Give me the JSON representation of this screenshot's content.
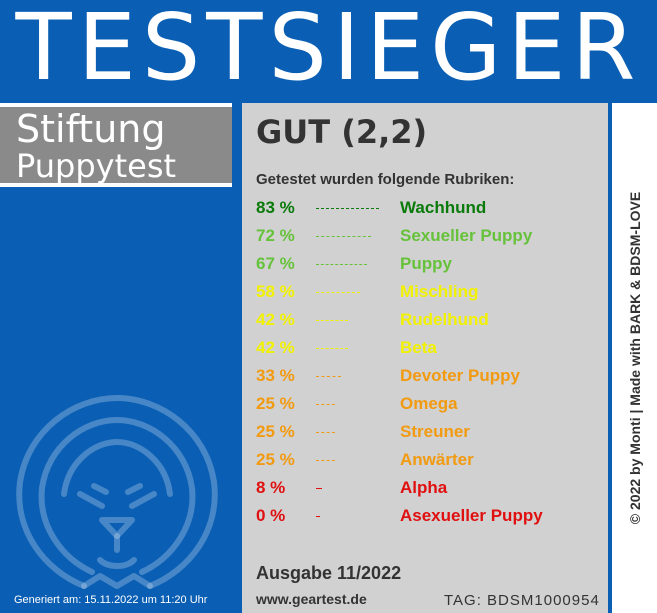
{
  "header": {
    "title": "TESTSIEGER"
  },
  "brand": {
    "line1": "Stiftung",
    "line2": "Puppytest"
  },
  "result": {
    "grade": "GUT (2,2)",
    "subtitle": "Getestet wurden folgende Rubriken:"
  },
  "rubrics": [
    {
      "percent": "83 %",
      "value": 83,
      "label": "Wachhund",
      "color": "#0a7a0a"
    },
    {
      "percent": "72 %",
      "value": 72,
      "label": "Sexueller Puppy",
      "color": "#66c23a"
    },
    {
      "percent": "67 %",
      "value": 67,
      "label": "Puppy",
      "color": "#66c23a"
    },
    {
      "percent": "58 %",
      "value": 58,
      "label": "Mischling",
      "color": "#f2f200"
    },
    {
      "percent": "42 %",
      "value": 42,
      "label": "Rudelhund",
      "color": "#f2f200"
    },
    {
      "percent": "42 %",
      "value": 42,
      "label": "Beta",
      "color": "#f2f200"
    },
    {
      "percent": "33 %",
      "value": 33,
      "label": "Devoter Puppy",
      "color": "#f29a10"
    },
    {
      "percent": "25 %",
      "value": 25,
      "label": "Omega",
      "color": "#f29a10"
    },
    {
      "percent": "25 %",
      "value": 25,
      "label": "Streuner",
      "color": "#f29a10"
    },
    {
      "percent": "25 %",
      "value": 25,
      "label": "Anwärter",
      "color": "#f29a10"
    },
    {
      "percent": "8 %",
      "value": 8,
      "label": "Alpha",
      "color": "#e01010"
    },
    {
      "percent": "0 %",
      "value": 0,
      "label": "Asexueller Puppy",
      "color": "#e01010"
    }
  ],
  "footer": {
    "issue": "Ausgabe 11/2022",
    "url": "www.geartest.de",
    "tag": "TAG: BDSM1000954",
    "generated": "Generiert am: 15.11.2022 um 11:20 Uhr",
    "copyright": "© 2022 by Monti | Made with BARK & BDSM-LOVE"
  },
  "colors": {
    "blue": "#0a5fb4",
    "panel": "#d1d1d1",
    "brand_gray": "#8a8a8a"
  },
  "icons": {
    "emblem": "lion-head-icon"
  }
}
